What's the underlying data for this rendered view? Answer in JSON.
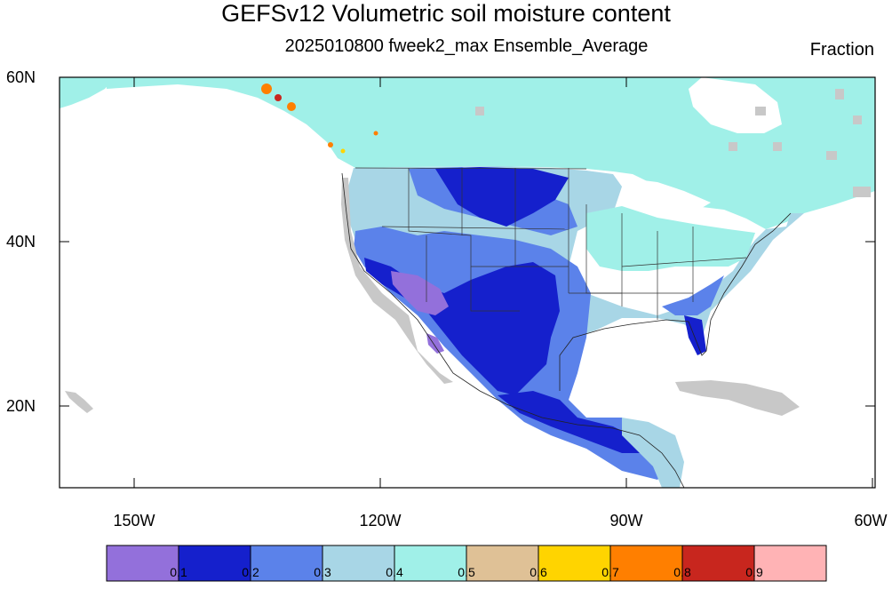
{
  "title": "GEFSv12 Volumetric soil moisture content",
  "subtitle": "2025010800 fweek2_max Ensemble_Average",
  "units": "Fraction",
  "lat_labels": [
    "60N",
    "40N",
    "20N"
  ],
  "lon_labels": [
    "150W",
    "120W",
    "90W",
    "60W"
  ],
  "colorbar": {
    "colors": [
      "#9370db",
      "#1520cc",
      "#5b82ea",
      "#a8d6e6",
      "#a0f0e8",
      "#dfc196",
      "#ffd400",
      "#ff7f00",
      "#c8261e",
      "#ffb3b5"
    ],
    "ticks": [
      "0.1",
      "0.2",
      "0.3",
      "0.4",
      "0.5",
      "0.6",
      "0.7",
      "0.8",
      "0.9"
    ]
  },
  "map": {
    "lat_range": [
      10,
      60
    ],
    "lon_range": [
      -160,
      -60
    ],
    "missing_color": "#c8c8c8"
  }
}
